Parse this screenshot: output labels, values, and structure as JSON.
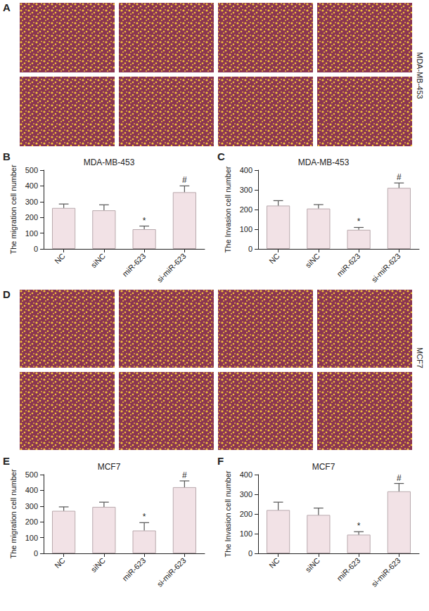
{
  "figure": {
    "image_panels": [
      {
        "panel": "A",
        "label": "MDA-MB-453"
      },
      {
        "panel": "D",
        "label": "MCF7"
      }
    ]
  },
  "chart_data": [
    {
      "type": "bar",
      "panel": "B",
      "title": "MDA-MB-453",
      "y_label": "The migration cell number",
      "categories": [
        "NC",
        "siNC",
        "miR-623",
        "si-miR-623"
      ],
      "values": [
        260,
        245,
        125,
        360
      ],
      "errors": [
        25,
        35,
        20,
        40
      ],
      "annotations": [
        null,
        null,
        "*",
        "#"
      ],
      "color": "#f2e2e6",
      "ylim": [
        0,
        500
      ],
      "yticks": [
        0,
        100,
        200,
        300,
        400,
        500
      ],
      "grid": false
    },
    {
      "type": "bar",
      "panel": "C",
      "title": "MDA-MB-453",
      "y_label": "The Invasion cell number",
      "categories": [
        "NC",
        "siNC",
        "miR-623",
        "si-miR-623"
      ],
      "values": [
        220,
        205,
        97,
        310
      ],
      "errors": [
        25,
        20,
        12,
        25
      ],
      "annotations": [
        null,
        null,
        "*",
        "#"
      ],
      "color": "#f2e2e6",
      "ylim": [
        0,
        400
      ],
      "yticks": [
        0,
        100,
        200,
        300,
        400
      ],
      "grid": false
    },
    {
      "type": "bar",
      "panel": "E",
      "title": "MCF7",
      "y_label": "The migration cell number",
      "categories": [
        "NC",
        "siNC",
        "miR-623",
        "si-miR-623"
      ],
      "values": [
        270,
        295,
        145,
        420
      ],
      "errors": [
        25,
        30,
        50,
        40
      ],
      "annotations": [
        null,
        null,
        "*",
        "#"
      ],
      "color": "#f2e2e6",
      "ylim": [
        0,
        500
      ],
      "yticks": [
        0,
        100,
        200,
        300,
        400,
        500
      ],
      "grid": false
    },
    {
      "type": "bar",
      "panel": "F",
      "title": "MCF7",
      "y_label": "The Invasion cell number",
      "categories": [
        "NC",
        "siNC",
        "miR-623",
        "si-miR-623"
      ],
      "values": [
        220,
        195,
        95,
        315
      ],
      "errors": [
        40,
        35,
        15,
        40
      ],
      "annotations": [
        null,
        null,
        "*",
        "#"
      ],
      "color": "#f2e2e6",
      "ylim": [
        0,
        400
      ],
      "yticks": [
        0,
        100,
        200,
        300,
        400
      ],
      "grid": false
    }
  ]
}
